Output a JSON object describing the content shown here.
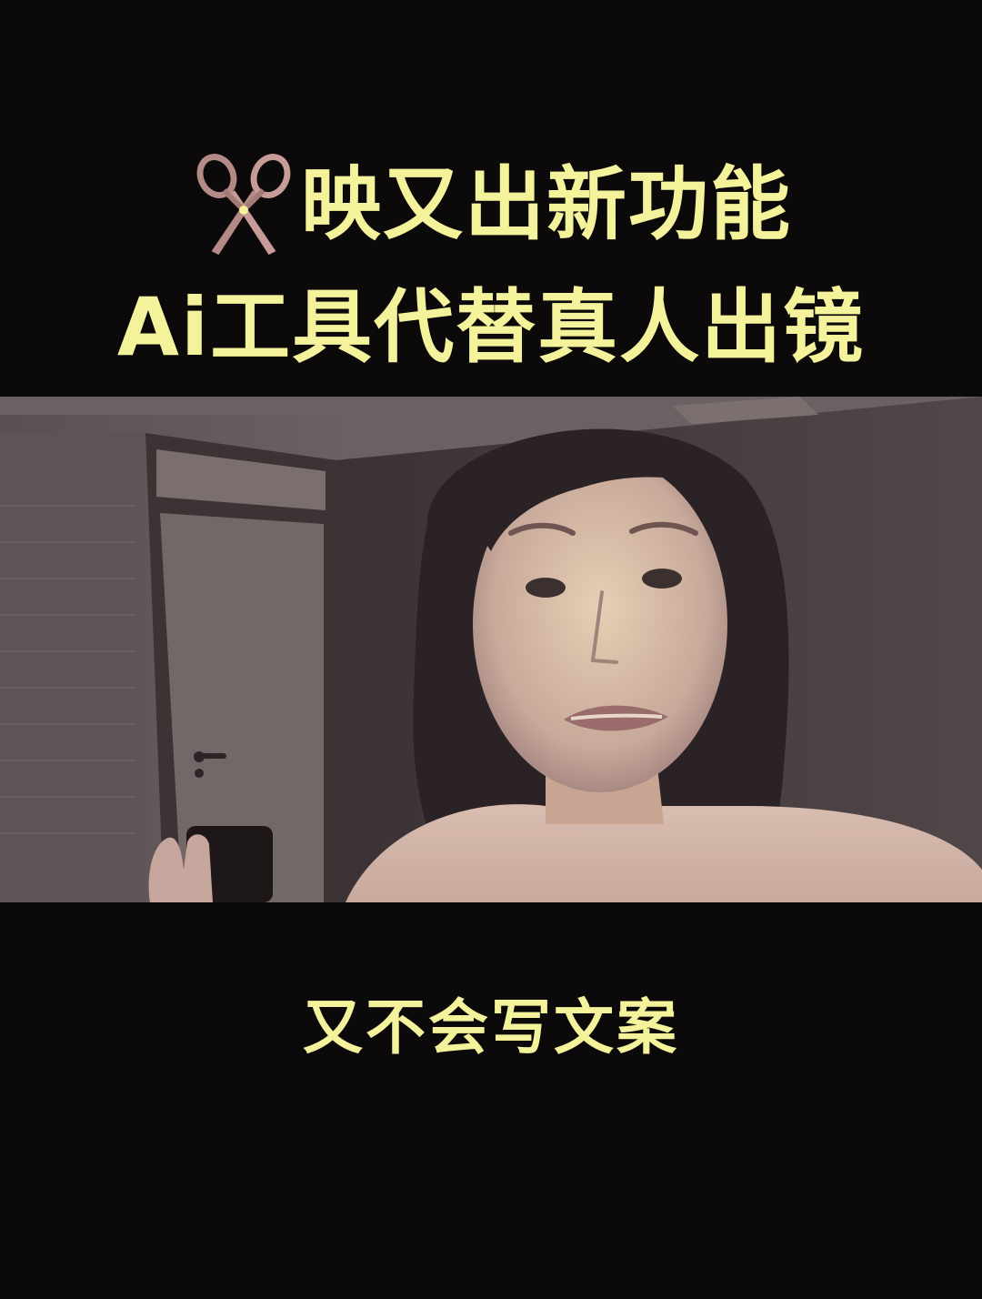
{
  "title": {
    "icon": "scissors-icon",
    "line1": "映又出新功能",
    "line2": "Ai工具代替真人出镜"
  },
  "video": {
    "description_icon": "video-frame"
  },
  "subtitle": "又不会写文案",
  "colors": {
    "background": "#0b0909",
    "caption_text": "#f4f29a"
  }
}
